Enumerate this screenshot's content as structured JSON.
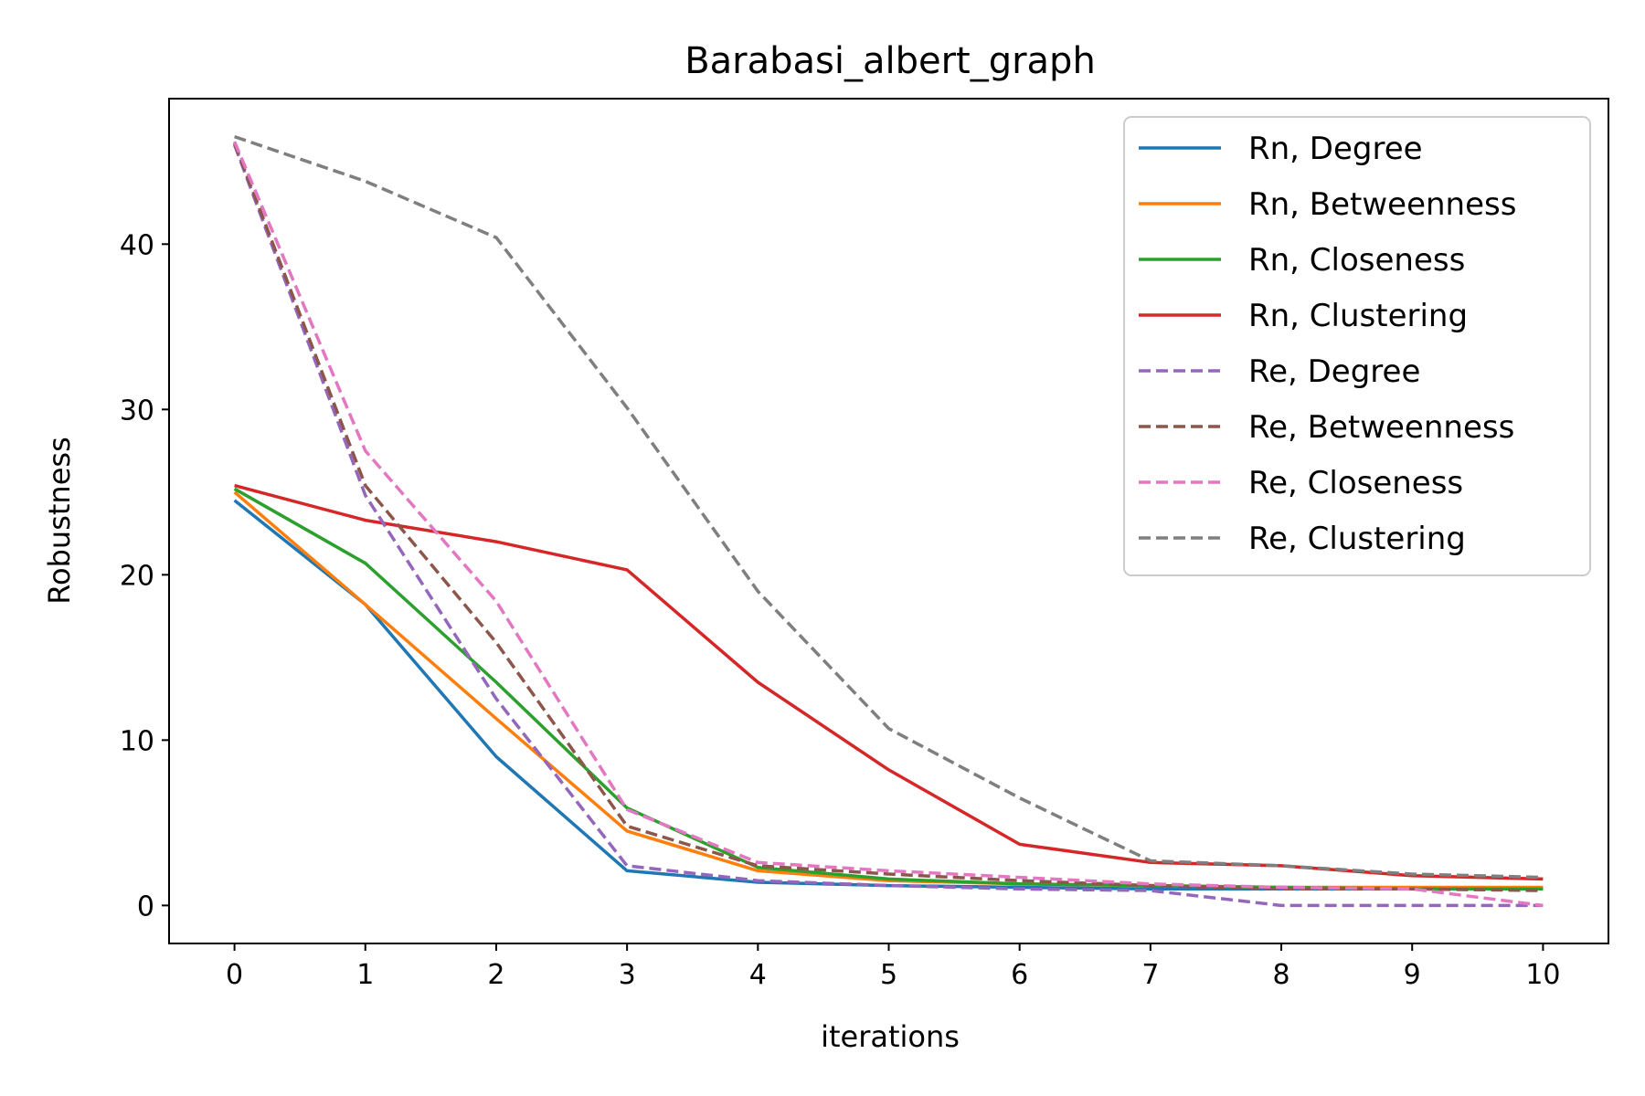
{
  "chart_data": {
    "type": "line",
    "title": "Barabasi_albert_graph",
    "xlabel": "iterations",
    "ylabel": "Robustness",
    "x": [
      0,
      1,
      2,
      3,
      4,
      5,
      6,
      7,
      8,
      9,
      10
    ],
    "xlim": [
      -0.5,
      10.5
    ],
    "ylim": [
      -2.3,
      48.8
    ],
    "x_ticks": [
      0,
      1,
      2,
      3,
      4,
      5,
      6,
      7,
      8,
      9,
      10
    ],
    "y_ticks": [
      0,
      10,
      20,
      30,
      40
    ],
    "grid": false,
    "legend_position": "top-right",
    "series": [
      {
        "name": "Rn, Degree",
        "color": "#1f77b4",
        "dash": "solid",
        "values": [
          24.5,
          18.2,
          9.0,
          2.1,
          1.4,
          1.2,
          1.1,
          1.0,
          1.0,
          1.0,
          1.0
        ]
      },
      {
        "name": "Rn, Betweenness",
        "color": "#ff7f0e",
        "dash": "solid",
        "values": [
          25.0,
          18.2,
          11.3,
          4.5,
          2.1,
          1.5,
          1.3,
          1.2,
          1.1,
          1.1,
          1.1
        ]
      },
      {
        "name": "Rn, Closeness",
        "color": "#2ca02c",
        "dash": "solid",
        "values": [
          25.2,
          20.7,
          13.5,
          5.9,
          2.3,
          1.6,
          1.3,
          1.2,
          1.1,
          1.0,
          1.0
        ]
      },
      {
        "name": "Rn, Clustering",
        "color": "#d62728",
        "dash": "solid",
        "values": [
          25.4,
          23.3,
          22.0,
          20.3,
          13.5,
          8.2,
          3.7,
          2.6,
          2.4,
          1.8,
          1.6
        ]
      },
      {
        "name": "Re, Degree",
        "color": "#9467bd",
        "dash": "dashed",
        "values": [
          46.0,
          24.8,
          12.5,
          2.4,
          1.5,
          1.2,
          1.0,
          0.9,
          0.0,
          0.0,
          0.0
        ]
      },
      {
        "name": "Re, Betweenness",
        "color": "#8c564b",
        "dash": "dashed",
        "values": [
          46.1,
          25.4,
          15.9,
          4.8,
          2.4,
          1.9,
          1.5,
          1.2,
          1.0,
          1.0,
          0.9
        ]
      },
      {
        "name": "Re, Closeness",
        "color": "#e377c2",
        "dash": "dashed",
        "values": [
          46.2,
          27.5,
          18.4,
          5.8,
          2.6,
          2.1,
          1.7,
          1.3,
          1.1,
          1.0,
          0.0
        ]
      },
      {
        "name": "Re, Clustering",
        "color": "#7f7f7f",
        "dash": "dashed",
        "values": [
          46.5,
          43.8,
          40.4,
          30.1,
          19.0,
          10.7,
          6.5,
          2.7,
          2.4,
          1.9,
          1.7
        ]
      }
    ]
  }
}
